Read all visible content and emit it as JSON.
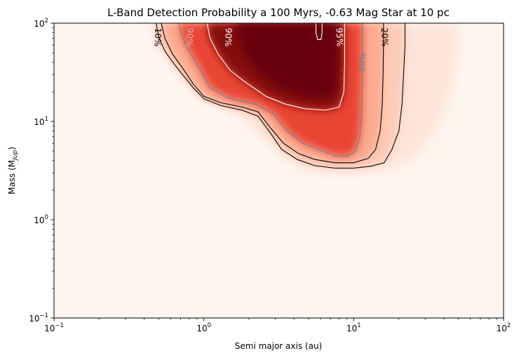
{
  "chart_data": {
    "type": "heatmap",
    "title": "L-Band Detection Probability a 100 Myrs, -0.63 Mag Star at 10 pc",
    "xlabel": "Semi major axis (au)",
    "ylabel": "Mass (M",
    "ylabel_sub": "Jup",
    "ylabel_close": ")",
    "x_scale": "log",
    "y_scale": "log",
    "xlim": [
      0.1,
      100
    ],
    "ylim": [
      0.1,
      100
    ],
    "x_ticks": [
      {
        "value": 0.1,
        "base": "10",
        "exp": "−1"
      },
      {
        "value": 1,
        "base": "10",
        "exp": "0"
      },
      {
        "value": 10,
        "base": "10",
        "exp": "1"
      },
      {
        "value": 100,
        "base": "10",
        "exp": "2"
      }
    ],
    "y_ticks": [
      {
        "value": 0.1,
        "base": "10",
        "exp": "−1"
      },
      {
        "value": 1,
        "base": "10",
        "exp": "0"
      },
      {
        "value": 10,
        "base": "10",
        "exp": "1"
      },
      {
        "value": 100,
        "base": "10",
        "exp": "2"
      }
    ],
    "colormap": {
      "name": "Reds",
      "low": "#fff5f0",
      "high": "#67000d"
    },
    "contours": [
      {
        "label": "10%",
        "level": 0.1,
        "color": "#000000",
        "points": [
          [
            0.48,
            100
          ],
          [
            0.5,
            72
          ],
          [
            0.55,
            52
          ],
          [
            0.62,
            40
          ],
          [
            0.72,
            30
          ],
          [
            0.85,
            22
          ],
          [
            1.0,
            17
          ],
          [
            1.3,
            14.5
          ],
          [
            1.8,
            13
          ],
          [
            2.3,
            11.3
          ],
          [
            2.8,
            7.5
          ],
          [
            3.3,
            5.2
          ],
          [
            4.2,
            4.1
          ],
          [
            5.5,
            3.55
          ],
          [
            7.5,
            3.35
          ],
          [
            10,
            3.35
          ],
          [
            13,
            3.5
          ],
          [
            16,
            3.8
          ],
          [
            18,
            5.2
          ],
          [
            20,
            8
          ],
          [
            21,
            15
          ],
          [
            21.5,
            30
          ],
          [
            22,
            60
          ],
          [
            22,
            100
          ]
        ]
      },
      {
        "label": "20%",
        "level": 0.2,
        "color": "#000000",
        "points": [
          [
            0.52,
            100
          ],
          [
            0.55,
            70
          ],
          [
            0.62,
            48
          ],
          [
            0.72,
            35
          ],
          [
            0.85,
            24
          ],
          [
            1.0,
            18
          ],
          [
            1.3,
            15.5
          ],
          [
            1.8,
            14
          ],
          [
            2.3,
            12.5
          ],
          [
            2.8,
            8.5
          ],
          [
            3.4,
            6
          ],
          [
            4.3,
            4.7
          ],
          [
            5.5,
            4.1
          ],
          [
            7.5,
            3.8
          ],
          [
            10,
            3.8
          ],
          [
            12.5,
            4.2
          ],
          [
            14,
            5.2
          ],
          [
            15,
            8
          ],
          [
            15.5,
            15
          ],
          [
            15.7,
            30
          ],
          [
            15.8,
            60
          ],
          [
            15.8,
            100
          ]
        ]
      },
      {
        "label": "50%",
        "level": 0.5,
        "color": "#708090",
        "points": [
          [
            0.68,
            100
          ],
          [
            0.72,
            70
          ],
          [
            0.82,
            48
          ],
          [
            0.95,
            33
          ],
          [
            1.1,
            22
          ],
          [
            1.5,
            17
          ],
          [
            2.2,
            15
          ],
          [
            2.9,
            12
          ],
          [
            3.6,
            8
          ],
          [
            4.5,
            6.1
          ],
          [
            5.8,
            5.2
          ],
          [
            7.5,
            4.5
          ],
          [
            9,
            4.4
          ],
          [
            10.3,
            5
          ],
          [
            11,
            7
          ],
          [
            11.3,
            12
          ],
          [
            11.4,
            25
          ],
          [
            11.4,
            50
          ],
          [
            11.4,
            100
          ]
        ]
      },
      {
        "label": "90%",
        "level": 0.9,
        "color": "#ffffff",
        "points": [
          [
            1.05,
            100
          ],
          [
            1.1,
            70
          ],
          [
            1.25,
            48
          ],
          [
            1.5,
            33
          ],
          [
            1.9,
            25
          ],
          [
            2.6,
            18
          ],
          [
            3.5,
            15
          ],
          [
            4.7,
            13.5
          ],
          [
            6.5,
            13
          ],
          [
            8,
            14
          ],
          [
            8.6,
            20
          ],
          [
            8.7,
            40
          ],
          [
            8.7,
            100
          ]
        ]
      },
      {
        "label": "95%",
        "level": 0.95,
        "color": "#ffffff",
        "points": [
          [
            5.6,
            100
          ],
          [
            5.6,
            80
          ],
          [
            5.75,
            68
          ],
          [
            6.05,
            68
          ],
          [
            6.15,
            80
          ],
          [
            6.15,
            100
          ]
        ]
      }
    ],
    "contour_labels": [
      {
        "text": "10%",
        "level": 0.1,
        "x": 0.49,
        "y": 72,
        "rotation": 92,
        "color": "#000000"
      },
      {
        "text": "90%",
        "level": 0.9,
        "x": 0.8,
        "y": 72,
        "rotation": 92,
        "color": "#d9b8b5"
      },
      {
        "text": "90%",
        "level": 0.9,
        "x": 1.45,
        "y": 72,
        "rotation": 92,
        "color": "#ffffff"
      },
      {
        "text": "95%",
        "level": 0.95,
        "x": 8.0,
        "y": 72,
        "rotation": 88,
        "color": "#ffffff"
      },
      {
        "text": "50%",
        "level": 0.5,
        "x": 11.5,
        "y": 40,
        "rotation": -88,
        "color": "#708090"
      },
      {
        "text": "20%",
        "level": 0.2,
        "x": 16.0,
        "y": 72,
        "rotation": 88,
        "color": "#000000"
      }
    ]
  }
}
